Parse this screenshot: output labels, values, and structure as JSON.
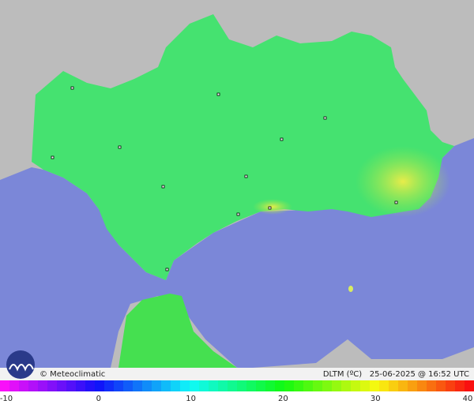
{
  "credit": "© Meteoclimatic",
  "caption": "DLTM (ºC)   25-06-2025 @ 16:52 UTC",
  "scale": {
    "ticks": [
      -10,
      0,
      10,
      20,
      30,
      40
    ]
  }
}
